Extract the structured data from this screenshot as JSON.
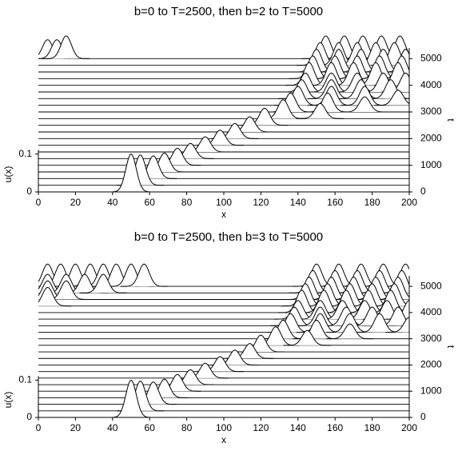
{
  "chart_data": [
    {
      "type": "waterfall",
      "title": "b=0 to T=2500, then b=2 to T=5000",
      "xlabel": "x",
      "ylabel": "u(x)",
      "y2label": "t",
      "xlim": [
        0,
        200
      ],
      "xticks": [
        0,
        20,
        40,
        60,
        80,
        100,
        120,
        140,
        160,
        180,
        200
      ],
      "ylim": [
        0,
        0.38
      ],
      "yticks": [
        0,
        0.1
      ],
      "y2lim": [
        0,
        5400
      ],
      "y2ticks": [
        0,
        1000,
        2000,
        3000,
        4000,
        5000
      ],
      "series": [
        {
          "t": 0,
          "x": [
            50
          ],
          "values": [
            0.1
          ]
        },
        {
          "t": 250,
          "x": [
            55
          ],
          "values": [
            0.08
          ]
        },
        {
          "t": 500,
          "x": [
            62
          ],
          "values": [
            0.06
          ]
        },
        {
          "t": 750,
          "x": [
            68
          ],
          "values": [
            0.05
          ]
        },
        {
          "t": 1000,
          "x": [
            75
          ],
          "values": [
            0.045
          ]
        },
        {
          "t": 1250,
          "x": [
            82
          ],
          "values": [
            0.04
          ]
        },
        {
          "t": 1500,
          "x": [
            90
          ],
          "values": [
            0.04
          ]
        },
        {
          "t": 1750,
          "x": [
            98
          ],
          "values": [
            0.04
          ]
        },
        {
          "t": 2000,
          "x": [
            106
          ],
          "values": [
            0.04
          ]
        },
        {
          "t": 2250,
          "x": [
            114
          ],
          "values": [
            0.04
          ]
        },
        {
          "t": 2500,
          "x": [
            122
          ],
          "values": [
            0.045
          ]
        },
        {
          "t": 2750,
          "x": [
            132,
            152
          ],
          "values": [
            0.05,
            0.04
          ]
        },
        {
          "t": 3000,
          "x": [
            136,
            156,
            176
          ],
          "values": [
            0.05,
            0.05,
            0.04
          ]
        },
        {
          "t": 3250,
          "x": [
            140,
            158,
            176,
            194
          ],
          "values": [
            0.05,
            0.05,
            0.05,
            0.04
          ]
        },
        {
          "t": 3500,
          "x": [
            142,
            158,
            174,
            190
          ],
          "values": [
            0.05,
            0.05,
            0.05,
            0.05
          ]
        },
        {
          "t": 3750,
          "x": [
            144,
            158,
            172,
            186,
            198
          ],
          "values": [
            0.05,
            0.05,
            0.05,
            0.05,
            0.05
          ]
        },
        {
          "t": 4000,
          "x": [
            146,
            158,
            170,
            182,
            194
          ],
          "values": [
            0.06,
            0.06,
            0.06,
            0.06,
            0.06
          ]
        },
        {
          "t": 4250,
          "x": [
            148,
            160,
            172,
            184,
            196
          ],
          "values": [
            0.06,
            0.06,
            0.06,
            0.06,
            0.06
          ]
        },
        {
          "t": 4500,
          "x": [
            150,
            162,
            174,
            186,
            198
          ],
          "values": [
            0.06,
            0.06,
            0.06,
            0.06,
            0.06
          ]
        },
        {
          "t": 4750,
          "x": [
            152,
            162,
            172,
            182,
            192
          ],
          "values": [
            0.06,
            0.06,
            0.06,
            0.06,
            0.06
          ]
        },
        {
          "t": 5000,
          "x": [
            5,
            10,
            15,
            155,
            165,
            175,
            185,
            195
          ],
          "values": [
            0.05,
            0.05,
            0.06,
            0.06,
            0.06,
            0.06,
            0.06,
            0.06
          ]
        }
      ]
    },
    {
      "type": "waterfall",
      "title": "b=0 to T=2500, then b=3 to T=5000",
      "xlabel": "x",
      "ylabel": "u(x)",
      "y2label": "t",
      "xlim": [
        0,
        200
      ],
      "xticks": [
        0,
        20,
        40,
        60,
        80,
        100,
        120,
        140,
        160,
        180,
        200
      ],
      "ylim": [
        0,
        0.38
      ],
      "yticks": [
        0,
        0.1
      ],
      "y2lim": [
        0,
        5400
      ],
      "y2ticks": [
        0,
        1000,
        2000,
        3000,
        4000,
        5000
      ],
      "series": [
        {
          "t": 0,
          "x": [
            50
          ],
          "values": [
            0.1
          ]
        },
        {
          "t": 250,
          "x": [
            55
          ],
          "values": [
            0.08
          ]
        },
        {
          "t": 500,
          "x": [
            62
          ],
          "values": [
            0.06
          ]
        },
        {
          "t": 750,
          "x": [
            68
          ],
          "values": [
            0.05
          ]
        },
        {
          "t": 1000,
          "x": [
            75
          ],
          "values": [
            0.045
          ]
        },
        {
          "t": 1250,
          "x": [
            82
          ],
          "values": [
            0.04
          ]
        },
        {
          "t": 1500,
          "x": [
            90
          ],
          "values": [
            0.04
          ]
        },
        {
          "t": 1750,
          "x": [
            98
          ],
          "values": [
            0.04
          ]
        },
        {
          "t": 2000,
          "x": [
            106
          ],
          "values": [
            0.04
          ]
        },
        {
          "t": 2250,
          "x": [
            114
          ],
          "values": [
            0.04
          ]
        },
        {
          "t": 2500,
          "x": [
            120
          ],
          "values": [
            0.045
          ]
        },
        {
          "t": 2750,
          "x": [
            128,
            145
          ],
          "values": [
            0.05,
            0.04
          ]
        },
        {
          "t": 3000,
          "x": [
            132,
            150,
            168
          ],
          "values": [
            0.05,
            0.05,
            0.04
          ]
        },
        {
          "t": 3250,
          "x": [
            136,
            152,
            168,
            184,
            200
          ],
          "values": [
            0.05,
            0.05,
            0.05,
            0.05,
            0.04
          ]
        },
        {
          "t": 3500,
          "x": [
            138,
            152,
            166,
            180,
            194
          ],
          "values": [
            0.05,
            0.05,
            0.05,
            0.05,
            0.05
          ]
        },
        {
          "t": 3750,
          "x": [
            140,
            152,
            164,
            176,
            188,
            200
          ],
          "values": [
            0.05,
            0.05,
            0.05,
            0.05,
            0.05,
            0.05
          ]
        },
        {
          "t": 4000,
          "x": [
            142,
            154,
            166,
            178,
            190
          ],
          "values": [
            0.06,
            0.06,
            0.06,
            0.06,
            0.06
          ]
        },
        {
          "t": 4250,
          "x": [
            5,
            144,
            156,
            168,
            180,
            192
          ],
          "values": [
            0.05,
            0.06,
            0.06,
            0.06,
            0.06,
            0.06
          ]
        },
        {
          "t": 4500,
          "x": [
            5,
            15,
            146,
            158,
            170,
            182,
            194
          ],
          "values": [
            0.05,
            0.05,
            0.06,
            0.06,
            0.06,
            0.06,
            0.06
          ]
        },
        {
          "t": 4750,
          "x": [
            5,
            15,
            25,
            35,
            148,
            160,
            172,
            184,
            196
          ],
          "values": [
            0.05,
            0.05,
            0.05,
            0.05,
            0.06,
            0.06,
            0.06,
            0.06,
            0.06
          ]
        },
        {
          "t": 5000,
          "x": [
            5,
            12,
            20,
            28,
            35,
            42,
            50,
            57,
            150,
            162,
            174,
            186,
            198
          ],
          "values": [
            0.06,
            0.06,
            0.06,
            0.06,
            0.06,
            0.06,
            0.06,
            0.06,
            0.06,
            0.06,
            0.06,
            0.06,
            0.06
          ]
        }
      ]
    }
  ]
}
